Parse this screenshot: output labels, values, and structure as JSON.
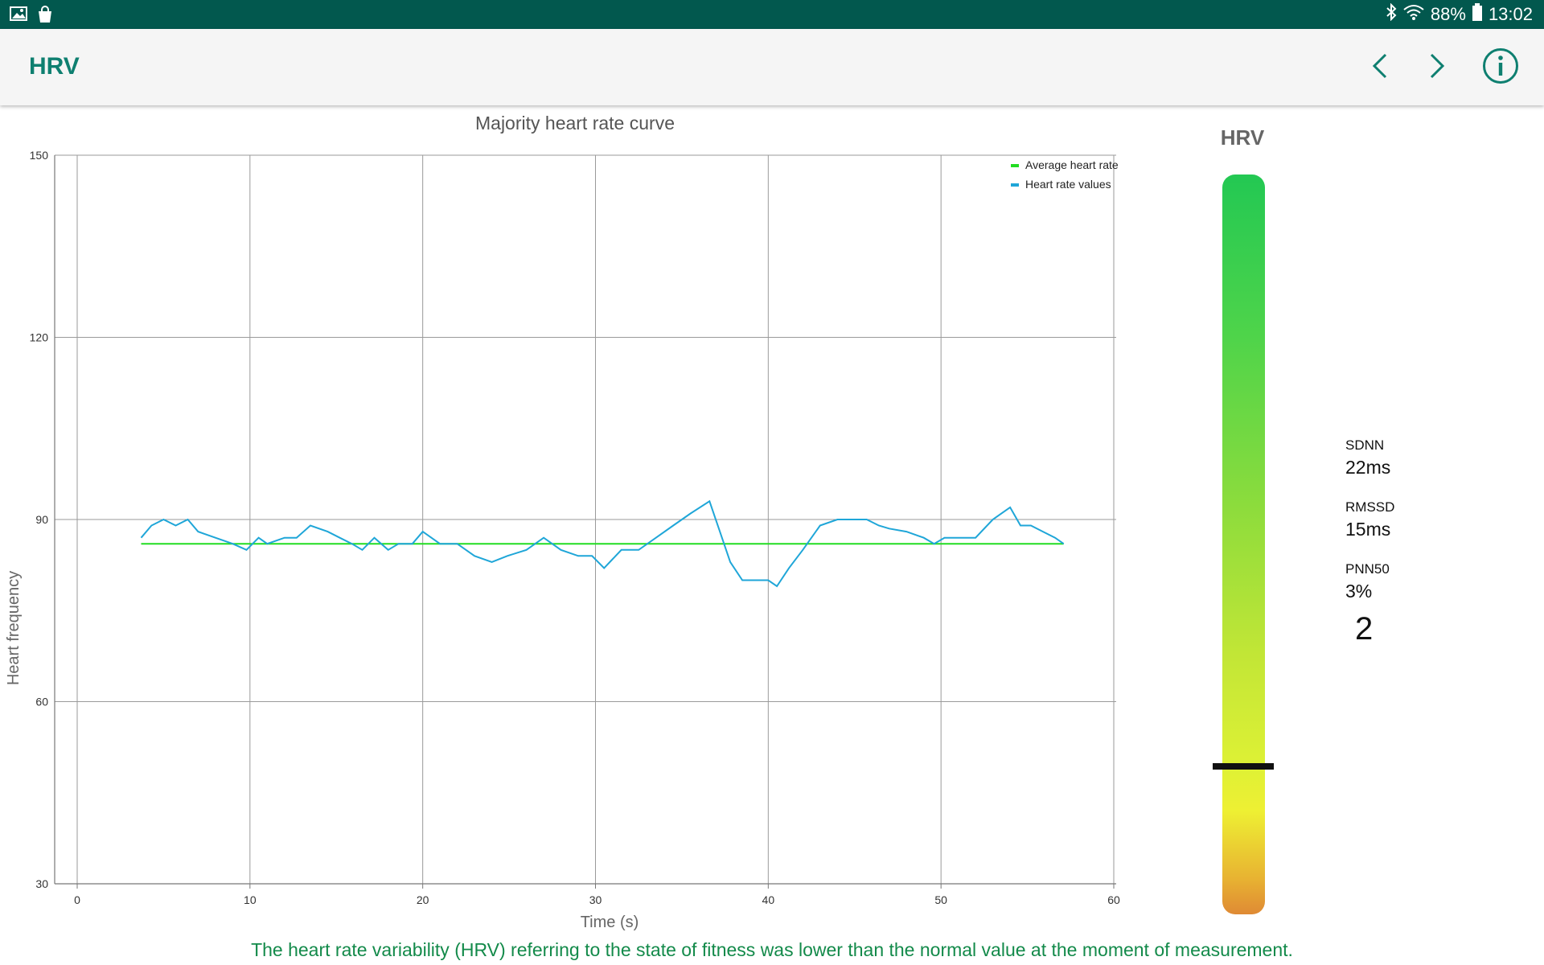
{
  "status_bar": {
    "left_icons": [
      "image-icon",
      "shopping-bag-icon"
    ],
    "right_icons": [
      "bluetooth-icon",
      "wifi-icon",
      "battery-icon"
    ],
    "battery": "88%",
    "time": "13:02"
  },
  "app_bar": {
    "title": "HRV",
    "prev_icon": "chevron-left-icon",
    "next_icon": "chevron-right-icon",
    "info_icon": "info-icon",
    "accent_color": "#0e7f70"
  },
  "chart_data": {
    "type": "line",
    "title": "Majority heart rate curve",
    "xlabel": "Time (s)",
    "ylabel": "Heart frequency",
    "xlim": [
      0,
      60
    ],
    "ylim": [
      30,
      150
    ],
    "x_ticks": [
      "0",
      "10",
      "20",
      "30",
      "40",
      "50",
      "60"
    ],
    "y_ticks": [
      "30",
      "60",
      "90",
      "120",
      "150"
    ],
    "grid": true,
    "legend_position": "top-right",
    "series": [
      {
        "name": "Average heart rate",
        "color": "#22dd22",
        "x": [
          3.7,
          57.1
        ],
        "y": [
          86,
          86
        ]
      },
      {
        "name": "Heart rate values",
        "color": "#1fa6d8",
        "x": [
          3.7,
          4.3,
          5.0,
          5.7,
          6.4,
          7.0,
          8.0,
          9.0,
          9.8,
          10.5,
          11.0,
          12.0,
          12.7,
          13.5,
          14.5,
          15.2,
          15.9,
          16.5,
          17.2,
          18.0,
          18.6,
          19.4,
          20.0,
          21.0,
          21.4,
          22.0,
          23.0,
          24.0,
          24.9,
          26.0,
          27.0,
          28.0,
          29.0,
          29.8,
          30.5,
          31.5,
          32.5,
          33.5,
          34.5,
          35.5,
          36.6,
          37.2,
          37.8,
          38.5,
          39.1,
          40.0,
          40.5,
          41.2,
          42.0,
          43.0,
          44.0,
          44.8,
          45.7,
          46.4,
          47.0,
          48.0,
          49.0,
          49.6,
          50.2,
          51.0,
          52.0,
          53.0,
          54.0,
          54.6,
          55.2,
          55.9,
          56.6,
          57.1
        ],
        "y": [
          87,
          89,
          90,
          89,
          90,
          88,
          87,
          86,
          85,
          87,
          86,
          87,
          87,
          89,
          88,
          87,
          86,
          85,
          87,
          85,
          86,
          86,
          88,
          86,
          86,
          86,
          84,
          83,
          84,
          85,
          87,
          85,
          84,
          84,
          82,
          85,
          85,
          87,
          89,
          91,
          93,
          88,
          83,
          80,
          80,
          80,
          79,
          82,
          85,
          89,
          90,
          90,
          90,
          89,
          88.5,
          88,
          87,
          86,
          87,
          87,
          87,
          90,
          92,
          89,
          89,
          88,
          87,
          86
        ]
      }
    ]
  },
  "hrv_panel": {
    "title": "HRV",
    "stats": [
      {
        "label": "SDNN",
        "value": "22ms"
      },
      {
        "label": "RMSSD",
        "value": "15ms"
      },
      {
        "label": "PNN50",
        "value": "3%"
      }
    ],
    "score": "2",
    "gauge_level_fraction": 0.2,
    "gauge_colors": [
      "#23c853",
      "#c2e636",
      "#eef033",
      "#df8a34"
    ]
  },
  "footer_text": "The heart rate variability (HRV) referring to the state of fitness was lower than the normal value at the moment of measurement."
}
